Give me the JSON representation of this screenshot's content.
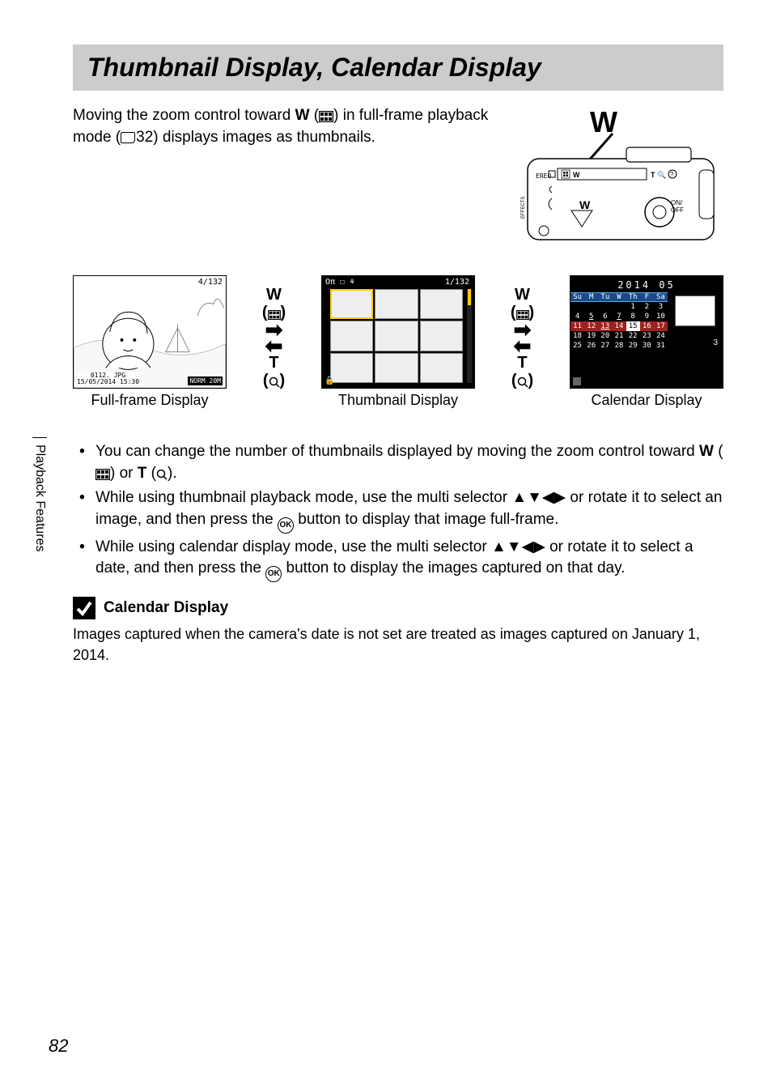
{
  "title": "Thumbnail Display, Calendar Display",
  "intro": {
    "part1": "Moving the zoom control toward ",
    "w": "W",
    "part2": " (",
    "part3": ") in full-frame playback mode (",
    "pageref": "32",
    "part4": ") displays images as thumbnails."
  },
  "camera_label_w": "W",
  "displays": {
    "fullframe": {
      "label": "Full-frame Display",
      "counter": "4/132",
      "meta1": "0112. JPG",
      "meta2": "15/05/2014 15:30",
      "norm": "NORM 20M"
    },
    "thumb": {
      "label": "Thumbnail Display",
      "counter": "1/132",
      "icons": "Oπ ☐ ⚘"
    },
    "calendar": {
      "label": "Calendar Display",
      "year_month": "2014   05",
      "days": [
        "Su",
        "M",
        "Tu",
        "W",
        "Th",
        "F",
        "Sa"
      ],
      "count_badge": "3",
      "grid": [
        [
          "",
          "",
          "",
          "",
          "1",
          "2",
          "3"
        ],
        [
          "4",
          "5",
          "6",
          "7",
          "8",
          "9",
          "10"
        ],
        [
          "11",
          "12",
          "13",
          "14",
          "15",
          "16",
          "17"
        ],
        [
          "18",
          "19",
          "20",
          "21",
          "22",
          "23",
          "24"
        ],
        [
          "25",
          "26",
          "27",
          "28",
          "29",
          "30",
          "31"
        ]
      ],
      "underlined": [
        "5",
        "7",
        "13"
      ],
      "highlighted": "15",
      "redrow_index": 2
    }
  },
  "transition": {
    "w_label": "W",
    "t_label": "T"
  },
  "bullets": {
    "b1": {
      "p1": "You can change the number of thumbnails displayed by moving the zoom control toward ",
      "w": "W",
      "p2": " (",
      "p3": ") or ",
      "t": "T",
      "p4": " (",
      "p5": ")."
    },
    "b2": {
      "p1": "While using thumbnail playback mode, use the multi selector ",
      "arrows": "▲▼◀▶",
      "p2": " or rotate it to select an image, and then press the ",
      "ok": "OK",
      "p3": " button to display that image full-frame."
    },
    "b3": {
      "p1": "While using calendar display mode, use the multi selector ",
      "arrows": "▲▼◀▶",
      "p2": " or rotate it to select a date, and then press the ",
      "ok": "OK",
      "p3": " button to display the images captured on that day."
    }
  },
  "note": {
    "title": "Calendar Display",
    "body": "Images captured when the camera's date is not set are treated as images captured on January 1, 2014."
  },
  "side_label": "Playback Features",
  "page_number": "82"
}
